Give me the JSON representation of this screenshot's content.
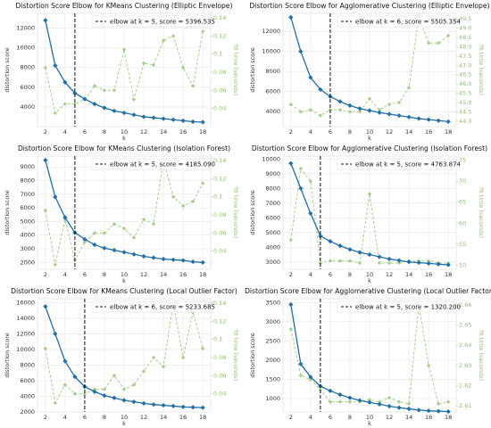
{
  "chart_data": [
    {
      "type": "line",
      "title": "Distortion Score Elbow for KMeans Clustering (Elliptic Envelope)",
      "xlabel": "k",
      "ylabel": "distortion score",
      "y2label": "fit time (seconds)",
      "legend": "elbow at k = 5, score = 5396.535",
      "elbow_x": 5,
      "x": [
        2,
        3,
        4,
        5,
        6,
        7,
        8,
        9,
        10,
        11,
        12,
        13,
        14,
        15,
        16,
        17,
        18
      ],
      "xlim": [
        1.2,
        18.8
      ],
      "xticks": [
        2,
        4,
        6,
        8,
        10,
        12,
        14,
        16,
        18
      ],
      "ylim": [
        2000,
        13500
      ],
      "yticks": [
        4000,
        6000,
        8000,
        10000,
        12000
      ],
      "y2lim": [
        0.02,
        0.145
      ],
      "y2ticks": [
        0.04,
        0.06,
        0.08,
        0.1,
        0.12,
        0.14
      ],
      "series": [
        {
          "color": "#1f6fa8",
          "values": [
            12800,
            8200,
            6500,
            5396.535,
            4800,
            4300,
            3900,
            3600,
            3400,
            3200,
            3000,
            2900,
            2800,
            2700,
            2600,
            2500,
            2450
          ]
        },
        {
          "color": "#a6cf8a",
          "axis": "y2",
          "values": [
            0.085,
            0.035,
            0.045,
            0.045,
            0.05,
            0.065,
            0.06,
            0.06,
            0.105,
            0.05,
            0.09,
            0.088,
            0.115,
            0.12,
            0.085,
            0.065,
            0.125
          ]
        }
      ]
    },
    {
      "type": "line",
      "title": "Distortion Score Elbow for Agglomerative Clustering (Elliptic Envelope)",
      "xlabel": "k",
      "ylabel": "distortion score",
      "y2label": "fit time (seconds)",
      "legend": "elbow at k = 6, score = 5505.354",
      "elbow_x": 6,
      "x": [
        2,
        3,
        4,
        5,
        6,
        7,
        8,
        9,
        10,
        11,
        12,
        13,
        14,
        15,
        16,
        17,
        18
      ],
      "xlim": [
        1.2,
        18.8
      ],
      "xticks": [
        2,
        4,
        6,
        8,
        10,
        12,
        14,
        16,
        18
      ],
      "ylim": [
        2500,
        13800
      ],
      "yticks": [
        4000,
        6000,
        8000,
        10000,
        12000
      ],
      "y2lim": [
        43.7,
        49.8
      ],
      "y2ticks": [
        {
          "value": 44,
          "label": "44.0"
        },
        44.5,
        {
          "value": 45,
          "label": "45.0"
        },
        45.5,
        {
          "value": 46,
          "label": "46.0"
        },
        46.5,
        {
          "value": 47,
          "label": "47.0"
        },
        47.5,
        {
          "value": 48,
          "label": "48.0"
        },
        48.5,
        {
          "value": 49,
          "label": "49.0"
        },
        49.5
      ],
      "series": [
        {
          "color": "#1f6fa8",
          "values": [
            13400,
            10000,
            7400,
            6200,
            5505.354,
            5000,
            4600,
            4300,
            4100,
            3900,
            3750,
            3600,
            3450,
            3300,
            3200,
            3100,
            3000
          ]
        },
        {
          "color": "#a6cf8a",
          "axis": "y2",
          "values": [
            44.9,
            44.5,
            44.6,
            44.3,
            44.6,
            44.6,
            44.5,
            44.5,
            45.2,
            44.6,
            44.9,
            45,
            45.8,
            49.6,
            48.2,
            48.2,
            48.6
          ]
        }
      ]
    },
    {
      "type": "line",
      "title": "Distortion Score Elbow for KMeans Clustering (Isolation Forest)",
      "xlabel": "k",
      "ylabel": "distortion score",
      "y2label": "fit time (seconds)",
      "legend": "elbow at k = 5, score = 4185.090",
      "elbow_x": 5,
      "x": [
        2,
        3,
        4,
        5,
        6,
        7,
        8,
        9,
        10,
        11,
        12,
        13,
        14,
        15,
        16,
        17,
        18
      ],
      "xlim": [
        1.2,
        18.8
      ],
      "xticks": [
        2,
        4,
        6,
        8,
        10,
        12,
        14,
        16,
        18
      ],
      "ylim": [
        1500,
        9800
      ],
      "yticks": [
        2000,
        3000,
        4000,
        5000,
        6000,
        7000,
        8000,
        9000
      ],
      "y2lim": [
        0.02,
        0.145
      ],
      "y2ticks": [
        0.04,
        0.06,
        0.08,
        0.1,
        0.12,
        0.14
      ],
      "series": [
        {
          "color": "#1f6fa8",
          "values": [
            9500,
            6800,
            5300,
            4185.09,
            3700,
            3300,
            3050,
            2900,
            2750,
            2600,
            2450,
            2350,
            2250,
            2200,
            2150,
            2050,
            2000
          ]
        },
        {
          "color": "#a6cf8a",
          "axis": "y2",
          "values": [
            0.085,
            0.025,
            0.075,
            0.03,
            0.05,
            0.06,
            0.06,
            0.07,
            0.065,
            0.055,
            0.075,
            0.07,
            0.14,
            0.1,
            0.09,
            0.095,
            0.115
          ]
        }
      ]
    },
    {
      "type": "line",
      "title": "Distortion Score Elbow for Agglomerative Clustering (Isolation Forest)",
      "xlabel": "k",
      "ylabel": "distortion score",
      "y2label": "fit time (seconds)",
      "legend": "elbow at k = 5, score = 4763.874",
      "elbow_x": 5,
      "x": [
        2,
        3,
        4,
        5,
        6,
        7,
        8,
        9,
        10,
        11,
        12,
        13,
        14,
        15,
        16,
        17,
        18
      ],
      "xlim": [
        1.2,
        18.8
      ],
      "xticks": [
        2,
        4,
        6,
        8,
        10,
        12,
        14,
        16,
        18
      ],
      "ylim": [
        2500,
        10200
      ],
      "yticks": [
        3000,
        4000,
        5000,
        6000,
        7000,
        8000,
        9000,
        10000
      ],
      "y2lim": [
        49,
        76
      ],
      "y2ticks": [
        50,
        55,
        60,
        65,
        70,
        75
      ],
      "series": [
        {
          "color": "#1f6fa8",
          "values": [
            9700,
            8000,
            6300,
            4763.874,
            4400,
            4100,
            3850,
            3650,
            3500,
            3350,
            3200,
            3100,
            3000,
            2950,
            2900,
            2850,
            2800
          ]
        },
        {
          "color": "#a6cf8a",
          "axis": "y2",
          "values": [
            56,
            73,
            70,
            50.5,
            51,
            51,
            51,
            50.5,
            67,
            50.5,
            50.5,
            50.5,
            51,
            51,
            51,
            50.5,
            50.5
          ]
        }
      ]
    },
    {
      "type": "line",
      "title": "Distortion Score Elbow for KMeans Clustering (Local Outlier Factor)",
      "xlabel": "k",
      "ylabel": "distortion score",
      "y2label": "fit time (seconds)",
      "legend": "elbow at k = 6, score = 5233.685",
      "elbow_x": 6,
      "x": [
        2,
        3,
        4,
        5,
        6,
        7,
        8,
        9,
        10,
        11,
        12,
        13,
        14,
        15,
        16,
        17,
        18
      ],
      "xlim": [
        1.2,
        18.8
      ],
      "xticks": [
        2,
        4,
        6,
        8,
        10,
        12,
        14,
        16,
        18
      ],
      "ylim": [
        2000,
        16500
      ],
      "yticks": [
        2000,
        4000,
        6000,
        8000,
        10000,
        12000,
        14000,
        16000
      ],
      "y2lim": [
        0.02,
        0.145
      ],
      "y2ticks": [
        0.04,
        0.06,
        0.08,
        0.1,
        0.12,
        0.14
      ],
      "series": [
        {
          "color": "#1f6fa8",
          "values": [
            15500,
            12000,
            8500,
            6500,
            5233.685,
            4600,
            4100,
            3800,
            3500,
            3300,
            3100,
            2950,
            2850,
            2750,
            2650,
            2600,
            2550
          ]
        },
        {
          "color": "#a6cf8a",
          "axis": "y2",
          "values": [
            0.09,
            0.03,
            0.05,
            0.04,
            0.04,
            0.045,
            0.045,
            0.06,
            0.045,
            0.05,
            0.065,
            0.08,
            0.07,
            0.14,
            0.08,
            0.13,
            0.09
          ]
        }
      ]
    },
    {
      "type": "line",
      "title": "Distortion Score Elbow for Agglomerative Clustering (Local Outlier Factor)",
      "xlabel": "k",
      "ylabel": "distortion score",
      "y2label": "fit time (seconds)",
      "legend": "elbow at k = 5, score = 1320.200",
      "elbow_x": 5,
      "x": [
        2,
        3,
        4,
        5,
        6,
        7,
        8,
        9,
        10,
        11,
        12,
        13,
        14,
        15,
        16,
        17,
        18
      ],
      "xlim": [
        1.2,
        18.8
      ],
      "xticks": [
        2,
        4,
        6,
        8,
        10,
        12,
        14,
        16,
        18
      ],
      "ylim": [
        650,
        3600
      ],
      "yticks": [
        1000,
        1500,
        2000,
        2500,
        3000,
        3500
      ],
      "y2lim": [
        2.607,
        2.663
      ],
      "y2ticks": [
        2.61,
        2.62,
        2.63,
        2.64,
        2.65,
        2.66
      ],
      "series": [
        {
          "color": "#1f6fa8",
          "values": [
            3450,
            1900,
            1560,
            1320.2,
            1200,
            1100,
            1020,
            950,
            900,
            850,
            800,
            760,
            730,
            700,
            680,
            670,
            660
          ]
        },
        {
          "color": "#a6cf8a",
          "axis": "y2",
          "values": [
            2.648,
            2.625,
            2.623,
            2.618,
            2.612,
            2.612,
            2.612,
            2.612,
            2.613,
            2.612,
            2.614,
            2.612,
            2.611,
            2.66,
            2.63,
            2.611,
            2.612
          ]
        }
      ]
    }
  ]
}
